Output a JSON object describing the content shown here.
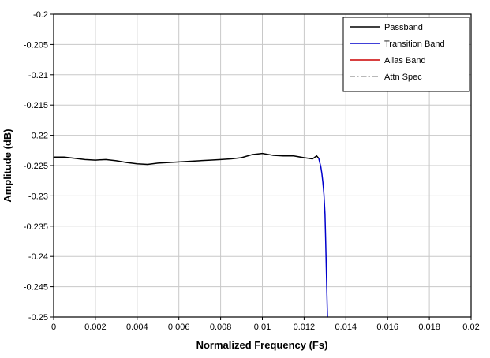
{
  "style": {
    "background_color": "#ffffff",
    "grid_color": "#c8c8c8",
    "axis_color": "#000000",
    "legend_border_color": "#000000",
    "legend_fill_color": "#ffffff"
  },
  "chart_data": {
    "type": "line",
    "title": "",
    "xlabel": "Normalized Frequency (Fs)",
    "ylabel": "Amplitude (dB)",
    "xlim": [
      0,
      0.02
    ],
    "ylim": [
      -0.25,
      -0.2
    ],
    "grid": true,
    "legend_position": "top-right",
    "x_ticks": [
      0,
      0.002,
      0.004,
      0.006,
      0.008,
      0.01,
      0.012,
      0.014,
      0.016,
      0.018,
      0.02
    ],
    "x_tick_labels": [
      "0",
      "0.002",
      "0.004",
      "0.006",
      "0.008",
      "0.01",
      "0.012",
      "0.014",
      "0.016",
      "0.018",
      "0.02"
    ],
    "y_ticks": [
      -0.2,
      -0.205,
      -0.21,
      -0.215,
      -0.22,
      -0.225,
      -0.23,
      -0.235,
      -0.24,
      -0.245,
      -0.25
    ],
    "y_tick_labels": [
      "-0.2",
      "-0.205",
      "-0.21",
      "-0.215",
      "-0.22",
      "-0.225",
      "-0.23",
      "-0.235",
      "-0.24",
      "-0.245",
      "-0.25"
    ],
    "series": [
      {
        "name": "Passband",
        "color": "#000000",
        "line_style": "solid",
        "x": [
          0,
          0.0005,
          0.001,
          0.0015,
          0.002,
          0.0025,
          0.003,
          0.0035,
          0.004,
          0.0045,
          0.005,
          0.0055,
          0.006,
          0.0065,
          0.007,
          0.0075,
          0.008,
          0.0085,
          0.009,
          0.0095,
          0.01,
          0.0105,
          0.011,
          0.0115,
          0.012,
          0.0124,
          0.0126,
          0.0127
        ],
        "y": [
          -0.2236,
          -0.2236,
          -0.2238,
          -0.224,
          -0.2241,
          -0.224,
          -0.2242,
          -0.2245,
          -0.2247,
          -0.2248,
          -0.2246,
          -0.2245,
          -0.2244,
          -0.2243,
          -0.2242,
          -0.2241,
          -0.224,
          -0.2239,
          -0.2237,
          -0.2232,
          -0.223,
          -0.2233,
          -0.2234,
          -0.2234,
          -0.2237,
          -0.2239,
          -0.2234,
          -0.2238
        ]
      },
      {
        "name": "Transition Band",
        "color": "#0000cc",
        "line_style": "solid",
        "x": [
          0.0127,
          0.0128,
          0.01285,
          0.0129,
          0.01295,
          0.013,
          0.01303,
          0.01306,
          0.01309,
          0.01312
        ],
        "y": [
          -0.2238,
          -0.2252,
          -0.2263,
          -0.2278,
          -0.2298,
          -0.233,
          -0.237,
          -0.2415,
          -0.246,
          -0.25
        ]
      },
      {
        "name": "Alias Band",
        "color": "#cc0000",
        "line_style": "solid",
        "x": [],
        "y": []
      },
      {
        "name": "Attn Spec",
        "color": "#a0a0a0",
        "line_style": "dashdot",
        "x": [],
        "y": []
      }
    ]
  }
}
